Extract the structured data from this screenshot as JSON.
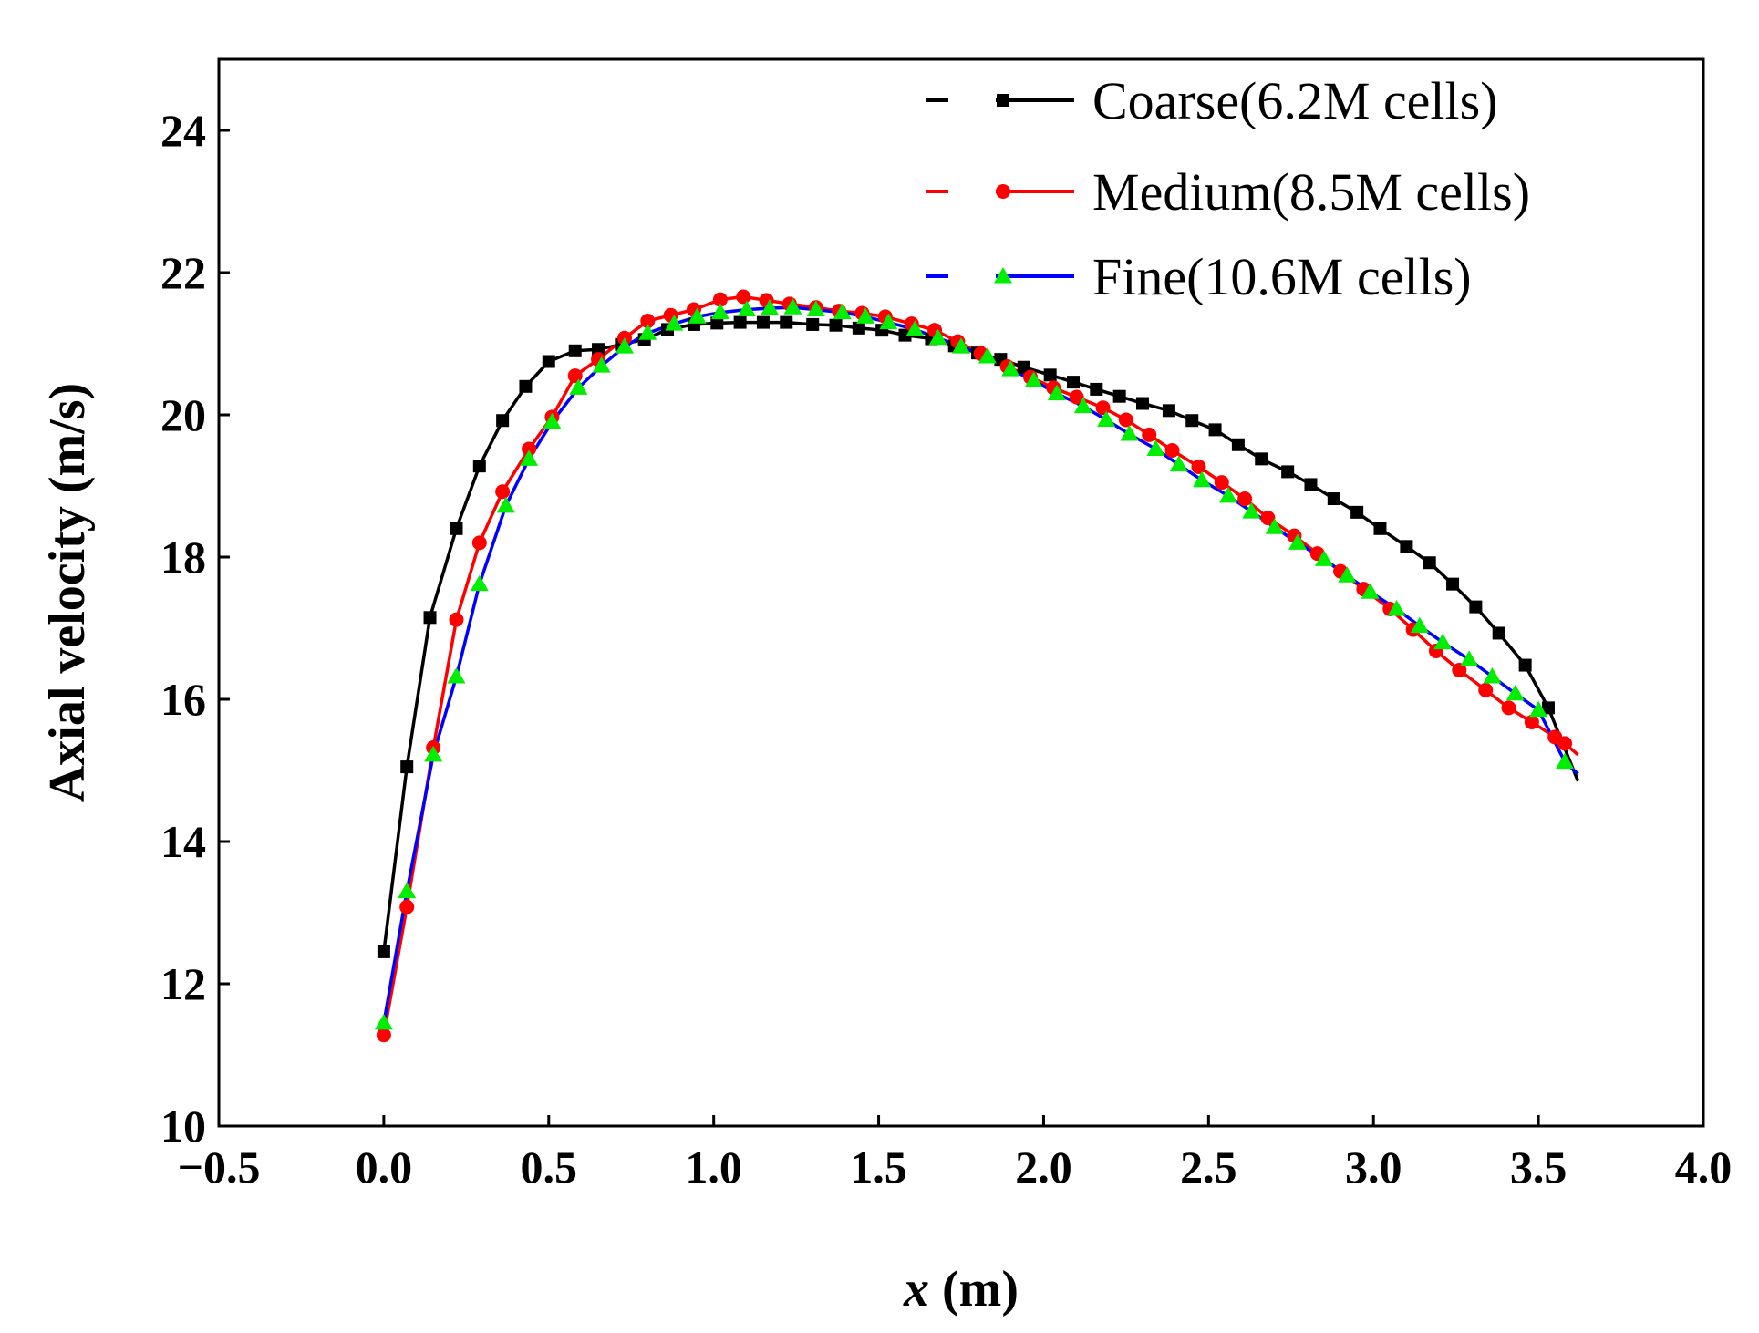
{
  "chart_data": {
    "type": "line",
    "title": "",
    "xlabel_var": "x",
    "xlabel_unit": " (m)",
    "ylabel": "Axial velocity (m/s)",
    "xlim": [
      -0.5,
      4.0
    ],
    "ylim": [
      10,
      25
    ],
    "x_ticks": [
      -0.5,
      0.0,
      0.5,
      1.0,
      1.5,
      2.0,
      2.5,
      3.0,
      3.5,
      4.0
    ],
    "x_tick_labels": [
      "−0.5",
      "0.0",
      "0.5",
      "1.0",
      "1.5",
      "2.0",
      "2.5",
      "3.0",
      "3.5",
      "4.0"
    ],
    "y_ticks": [
      10,
      12,
      14,
      16,
      18,
      20,
      22,
      24
    ],
    "y_tick_labels": [
      "10",
      "12",
      "14",
      "16",
      "18",
      "20",
      "22",
      "24"
    ],
    "grid": false,
    "legend_position": "top-right",
    "series": [
      {
        "name": "Coarse(6.2M cells)",
        "color": "#000000",
        "marker": "square",
        "x": [
          0.0,
          0.07,
          0.14,
          0.22,
          0.29,
          0.36,
          0.43,
          0.5,
          0.58,
          0.65,
          0.72,
          0.79,
          0.86,
          0.94,
          1.01,
          1.08,
          1.15,
          1.22,
          1.3,
          1.37,
          1.44,
          1.51,
          1.58,
          1.66,
          1.73,
          1.8,
          1.87,
          1.94,
          2.02,
          2.09,
          2.16,
          2.23,
          2.3,
          2.38,
          2.45,
          2.52,
          2.59,
          2.66,
          2.74,
          2.81,
          2.88,
          2.95,
          3.02,
          3.1,
          3.17,
          3.24,
          3.31,
          3.38,
          3.46,
          3.53
        ],
        "y": [
          12.45,
          15.05,
          17.15,
          18.4,
          19.28,
          19.92,
          20.4,
          20.75,
          20.9,
          20.92,
          20.99,
          21.06,
          21.2,
          21.27,
          21.29,
          21.3,
          21.3,
          21.3,
          21.27,
          21.26,
          21.22,
          21.19,
          21.12,
          21.07,
          20.97,
          20.87,
          20.78,
          20.67,
          20.56,
          20.46,
          20.36,
          20.26,
          20.16,
          20.06,
          19.92,
          19.79,
          19.58,
          19.38,
          19.2,
          19.02,
          18.82,
          18.63,
          18.4,
          18.15,
          17.92,
          17.62,
          17.3,
          16.93,
          16.48,
          15.88
        ],
        "end": [
          3.62,
          14.85
        ]
      },
      {
        "name": "Medium(8.5M cells)",
        "color": "#ff0000",
        "marker": "circle",
        "x": [
          0.0,
          0.07,
          0.15,
          0.22,
          0.29,
          0.36,
          0.44,
          0.51,
          0.58,
          0.65,
          0.73,
          0.8,
          0.87,
          0.94,
          1.02,
          1.09,
          1.16,
          1.23,
          1.31,
          1.38,
          1.45,
          1.52,
          1.6,
          1.67,
          1.74,
          1.81,
          1.89,
          1.96,
          2.03,
          2.1,
          2.18,
          2.25,
          2.32,
          2.39,
          2.47,
          2.54,
          2.61,
          2.68,
          2.76,
          2.83,
          2.9,
          2.97,
          3.05,
          3.12,
          3.19,
          3.26,
          3.34,
          3.41,
          3.48,
          3.55,
          3.58
        ],
        "y": [
          11.28,
          13.08,
          15.32,
          17.12,
          18.2,
          18.92,
          19.52,
          19.97,
          20.55,
          20.78,
          21.08,
          21.32,
          21.4,
          21.48,
          21.62,
          21.66,
          21.61,
          21.56,
          21.51,
          21.46,
          21.43,
          21.38,
          21.28,
          21.19,
          21.03,
          20.86,
          20.68,
          20.53,
          20.38,
          20.25,
          20.1,
          19.93,
          19.72,
          19.5,
          19.27,
          19.05,
          18.82,
          18.55,
          18.3,
          18.05,
          17.8,
          17.55,
          17.27,
          16.98,
          16.68,
          16.41,
          16.13,
          15.88,
          15.68,
          15.47,
          15.38
        ],
        "end": [
          3.62,
          15.22
        ]
      },
      {
        "name": "Fine(10.6M cells)",
        "color": "#0000ff",
        "marker_color": "#00ee00",
        "marker": "triangle",
        "x": [
          0.0,
          0.07,
          0.15,
          0.22,
          0.29,
          0.37,
          0.44,
          0.51,
          0.59,
          0.66,
          0.73,
          0.8,
          0.88,
          0.95,
          1.02,
          1.1,
          1.17,
          1.24,
          1.31,
          1.39,
          1.46,
          1.53,
          1.61,
          1.68,
          1.75,
          1.83,
          1.9,
          1.97,
          2.04,
          2.12,
          2.19,
          2.26,
          2.34,
          2.41,
          2.48,
          2.56,
          2.63,
          2.7,
          2.77,
          2.85,
          2.92,
          2.99,
          3.07,
          3.14,
          3.21,
          3.29,
          3.36,
          3.43,
          3.5,
          3.58
        ],
        "y": [
          11.45,
          13.3,
          15.22,
          16.32,
          17.62,
          18.72,
          19.38,
          19.9,
          20.38,
          20.69,
          20.96,
          21.15,
          21.28,
          21.38,
          21.44,
          21.48,
          21.5,
          21.51,
          21.48,
          21.44,
          21.38,
          21.3,
          21.2,
          21.08,
          20.96,
          20.82,
          20.64,
          20.48,
          20.3,
          20.12,
          19.93,
          19.73,
          19.52,
          19.3,
          19.08,
          18.86,
          18.64,
          18.42,
          18.2,
          17.97,
          17.74,
          17.51,
          17.27,
          17.03,
          16.8,
          16.56,
          16.32,
          16.08,
          15.85,
          15.12
        ],
        "end": [
          3.62,
          14.95
        ]
      }
    ]
  }
}
